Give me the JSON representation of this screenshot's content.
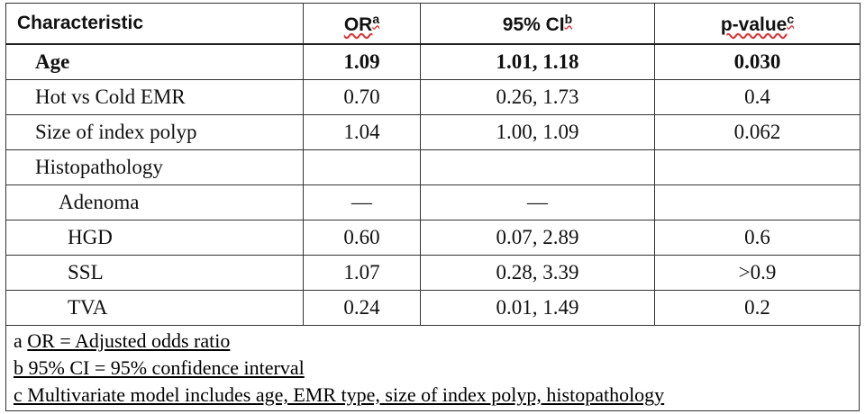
{
  "table": {
    "headers": {
      "characteristic": "Characteristic",
      "or": "OR",
      "or_sup": "a",
      "ci": "95% CI",
      "ci_sup": "b",
      "p": "p-value",
      "p_sup": "c"
    },
    "rows": [
      {
        "label": "Age",
        "or": "1.09",
        "ci": "1.01, 1.18",
        "p": "0.030"
      },
      {
        "label": "Hot vs Cold EMR",
        "or": "0.70",
        "ci": "0.26, 1.73",
        "p": "0.4"
      },
      {
        "label": "Size of index polyp",
        "or": "1.04",
        "ci": "1.00, 1.09",
        "p": "0.062"
      },
      {
        "label": "Histopathology",
        "or": "",
        "ci": "",
        "p": ""
      },
      {
        "label": "Adenoma",
        "or": "—",
        "ci": "—",
        "p": ""
      },
      {
        "label": "HGD",
        "or": "0.60",
        "ci": "0.07, 2.89",
        "p": "0.6"
      },
      {
        "label": "SSL",
        "or": "1.07",
        "ci": "0.28, 3.39",
        "p": ">0.9"
      },
      {
        "label": "TVA",
        "or": "0.24",
        "ci": "0.01, 1.49",
        "p": "0.2"
      }
    ]
  },
  "footnotes": {
    "a_letter": "a",
    "a_text": "OR = Adjusted odds ratio",
    "b_text": "b 95% CI = 95% confidence interval",
    "c_text": "c Multivariate model includes age, EMR type, size of index polyp, histopathology"
  }
}
